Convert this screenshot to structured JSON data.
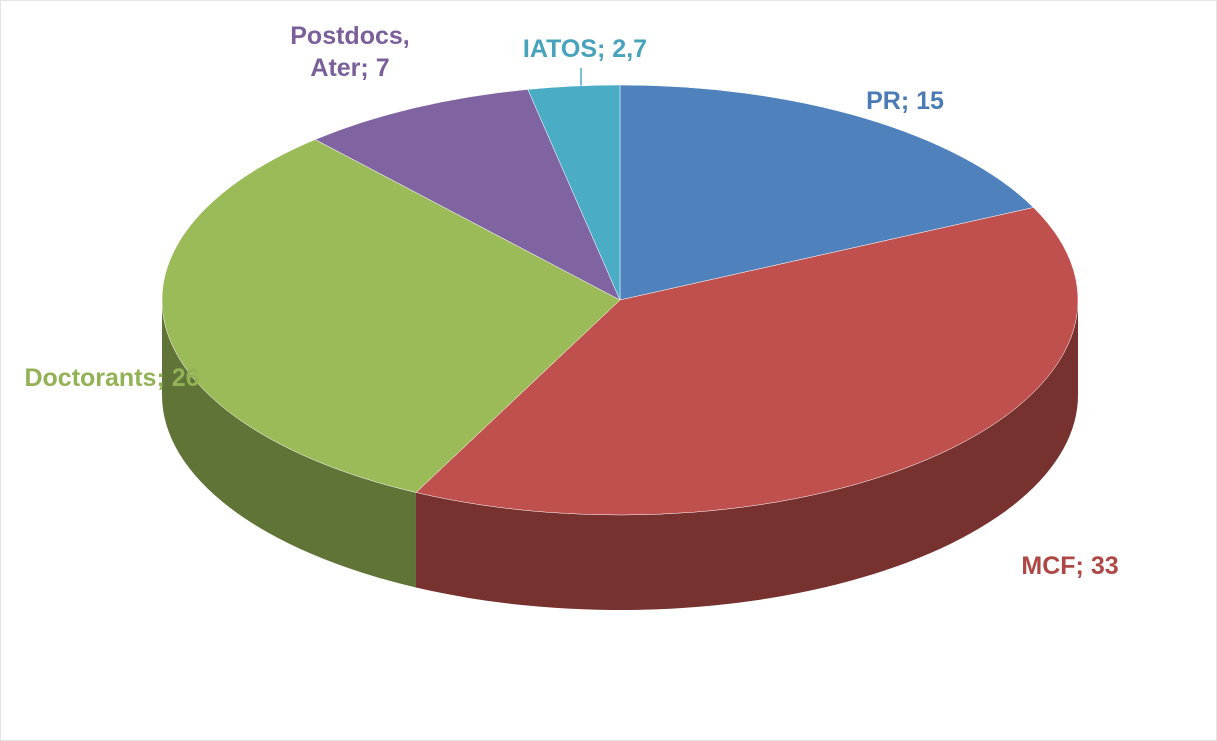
{
  "chart_data": {
    "type": "pie3d",
    "categories": [
      "PR",
      "MCF",
      "Doctorants",
      "Postdocs, Ater",
      "IATOS"
    ],
    "values": [
      15,
      33,
      26,
      7,
      2.7
    ],
    "value_labels": [
      "15",
      "33",
      "26",
      "7",
      "2,7"
    ],
    "label_separator": "; ",
    "colors": [
      "#4f81bd",
      "#c0504d",
      "#9bbb59",
      "#8064a2",
      "#4bacc6"
    ]
  }
}
